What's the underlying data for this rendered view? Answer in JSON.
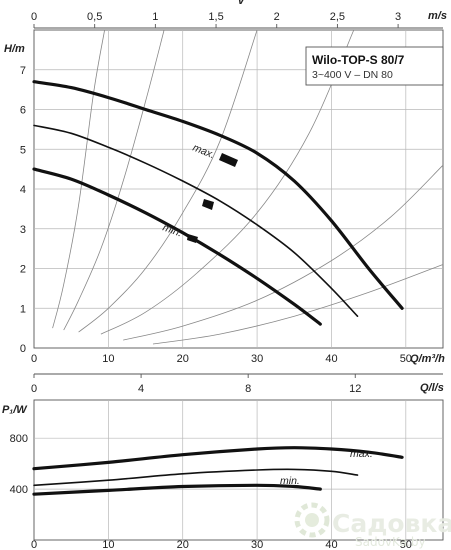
{
  "chart_data": [
    {
      "type": "line",
      "name_box": {
        "title": "Wilo-TOP-S 80/7",
        "subtitle": "3~400 V – DN 80"
      },
      "ylabel": "H/m",
      "xlabel": "Q/m³/h",
      "top_axis_label": "v",
      "top_axis_unit": "m/s",
      "xlim": [
        0,
        55
      ],
      "ylim": [
        0,
        8
      ],
      "x_ticks": [
        0,
        10,
        20,
        30,
        40,
        50
      ],
      "y_ticks": [
        0,
        1,
        2,
        3,
        4,
        5,
        6,
        7
      ],
      "top_ticks": [
        "0",
        "0,5",
        "1",
        "1,5",
        "2",
        "2,5",
        "3"
      ],
      "top_axis_max_value": 3.37,
      "curve_labels": {
        "max": "max.",
        "min": "min."
      },
      "series": [
        {
          "x": [
            0,
            5,
            10,
            15,
            20,
            25,
            30,
            35,
            40,
            45,
            49.5
          ],
          "y": [
            6.7,
            6.55,
            6.3,
            6.0,
            5.7,
            5.35,
            4.9,
            4.2,
            3.2,
            2.0,
            1.0
          ]
        },
        {
          "x": [
            0,
            5,
            10,
            15,
            20,
            25,
            30,
            35,
            40,
            43.5
          ],
          "y": [
            5.6,
            5.4,
            5.05,
            4.65,
            4.2,
            3.7,
            3.1,
            2.4,
            1.5,
            0.8
          ]
        },
        {
          "x": [
            0,
            5,
            10,
            15,
            20,
            25,
            30,
            35,
            38.5
          ],
          "y": [
            4.5,
            4.25,
            3.85,
            3.4,
            2.9,
            2.35,
            1.75,
            1.1,
            0.6
          ]
        }
      ],
      "system_curves": [
        {
          "x": [
            2.5,
            4,
            6,
            8,
            9.5
          ],
          "y": [
            0.5,
            1.6,
            3.6,
            6.4,
            8.0
          ]
        },
        {
          "x": [
            4,
            6,
            9,
            12,
            15,
            17.5
          ],
          "y": [
            0.45,
            1.2,
            2.5,
            4.2,
            6.2,
            8.0
          ]
        },
        {
          "x": [
            6,
            10,
            15,
            20,
            25,
            30
          ],
          "y": [
            0.4,
            1.0,
            2.0,
            3.4,
            5.2,
            8.0
          ]
        },
        {
          "x": [
            9,
            15,
            22,
            30,
            37,
            43
          ],
          "y": [
            0.35,
            0.9,
            1.9,
            3.4,
            5.4,
            8.0
          ]
        },
        {
          "x": [
            12,
            20,
            30,
            40,
            48,
            55
          ],
          "y": [
            0.2,
            0.55,
            1.2,
            2.2,
            3.3,
            4.6
          ]
        },
        {
          "x": [
            16,
            25,
            35,
            45,
            55
          ],
          "y": [
            0.1,
            0.35,
            0.8,
            1.4,
            2.1
          ]
        }
      ]
    },
    {
      "type": "line",
      "ylabel": "P₁/W",
      "xlabel": "Q/l/s",
      "top_axis_unit": "Q/l/s",
      "xlim": [
        0,
        55
      ],
      "ylim": [
        0,
        1100
      ],
      "x_ticks": [
        0,
        10,
        20,
        30,
        40,
        50
      ],
      "y_ticks": [
        400,
        800
      ],
      "top_ticks": [
        "0",
        "4",
        "8",
        "12"
      ],
      "top_tick_values_ls": [
        0,
        4,
        8,
        12
      ],
      "curve_labels": {
        "max": "max.",
        "min": "min."
      },
      "series": [
        {
          "x": [
            0,
            10,
            20,
            30,
            35,
            40,
            45,
            49.5
          ],
          "y": [
            560,
            610,
            670,
            715,
            725,
            715,
            690,
            650
          ]
        },
        {
          "x": [
            0,
            10,
            20,
            30,
            35,
            40,
            43.5
          ],
          "y": [
            430,
            470,
            520,
            550,
            555,
            540,
            510
          ]
        },
        {
          "x": [
            0,
            10,
            20,
            30,
            35,
            38.5
          ],
          "y": [
            360,
            390,
            420,
            430,
            420,
            400
          ]
        }
      ]
    }
  ],
  "watermark": {
    "text": "Садовка",
    "sub": "SadovKa.by"
  }
}
